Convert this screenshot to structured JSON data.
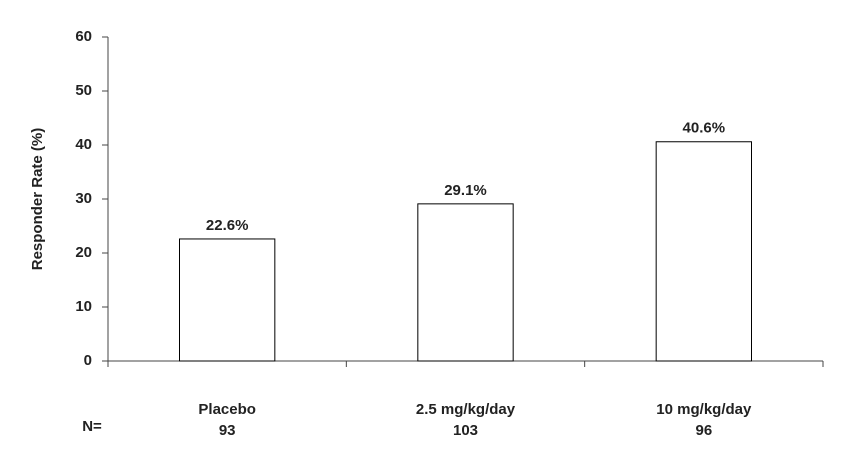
{
  "chart_data": {
    "type": "bar",
    "y_label": "Responder Rate (%)",
    "categories": [
      "Placebo",
      "2.5 mg/kg/day",
      "10 mg/kg/day"
    ],
    "values": [
      22.6,
      29.1,
      40.6
    ],
    "value_labels": [
      "22.6%",
      "29.1%",
      "40.6%"
    ],
    "n_label": "N=",
    "n": [
      93,
      103,
      96
    ],
    "color": "#ffffff",
    "edge_color": "#000000",
    "ylim": [
      0,
      60
    ],
    "yticks": [
      0,
      10,
      20,
      30,
      40,
      50,
      60
    ],
    "grid": false
  }
}
